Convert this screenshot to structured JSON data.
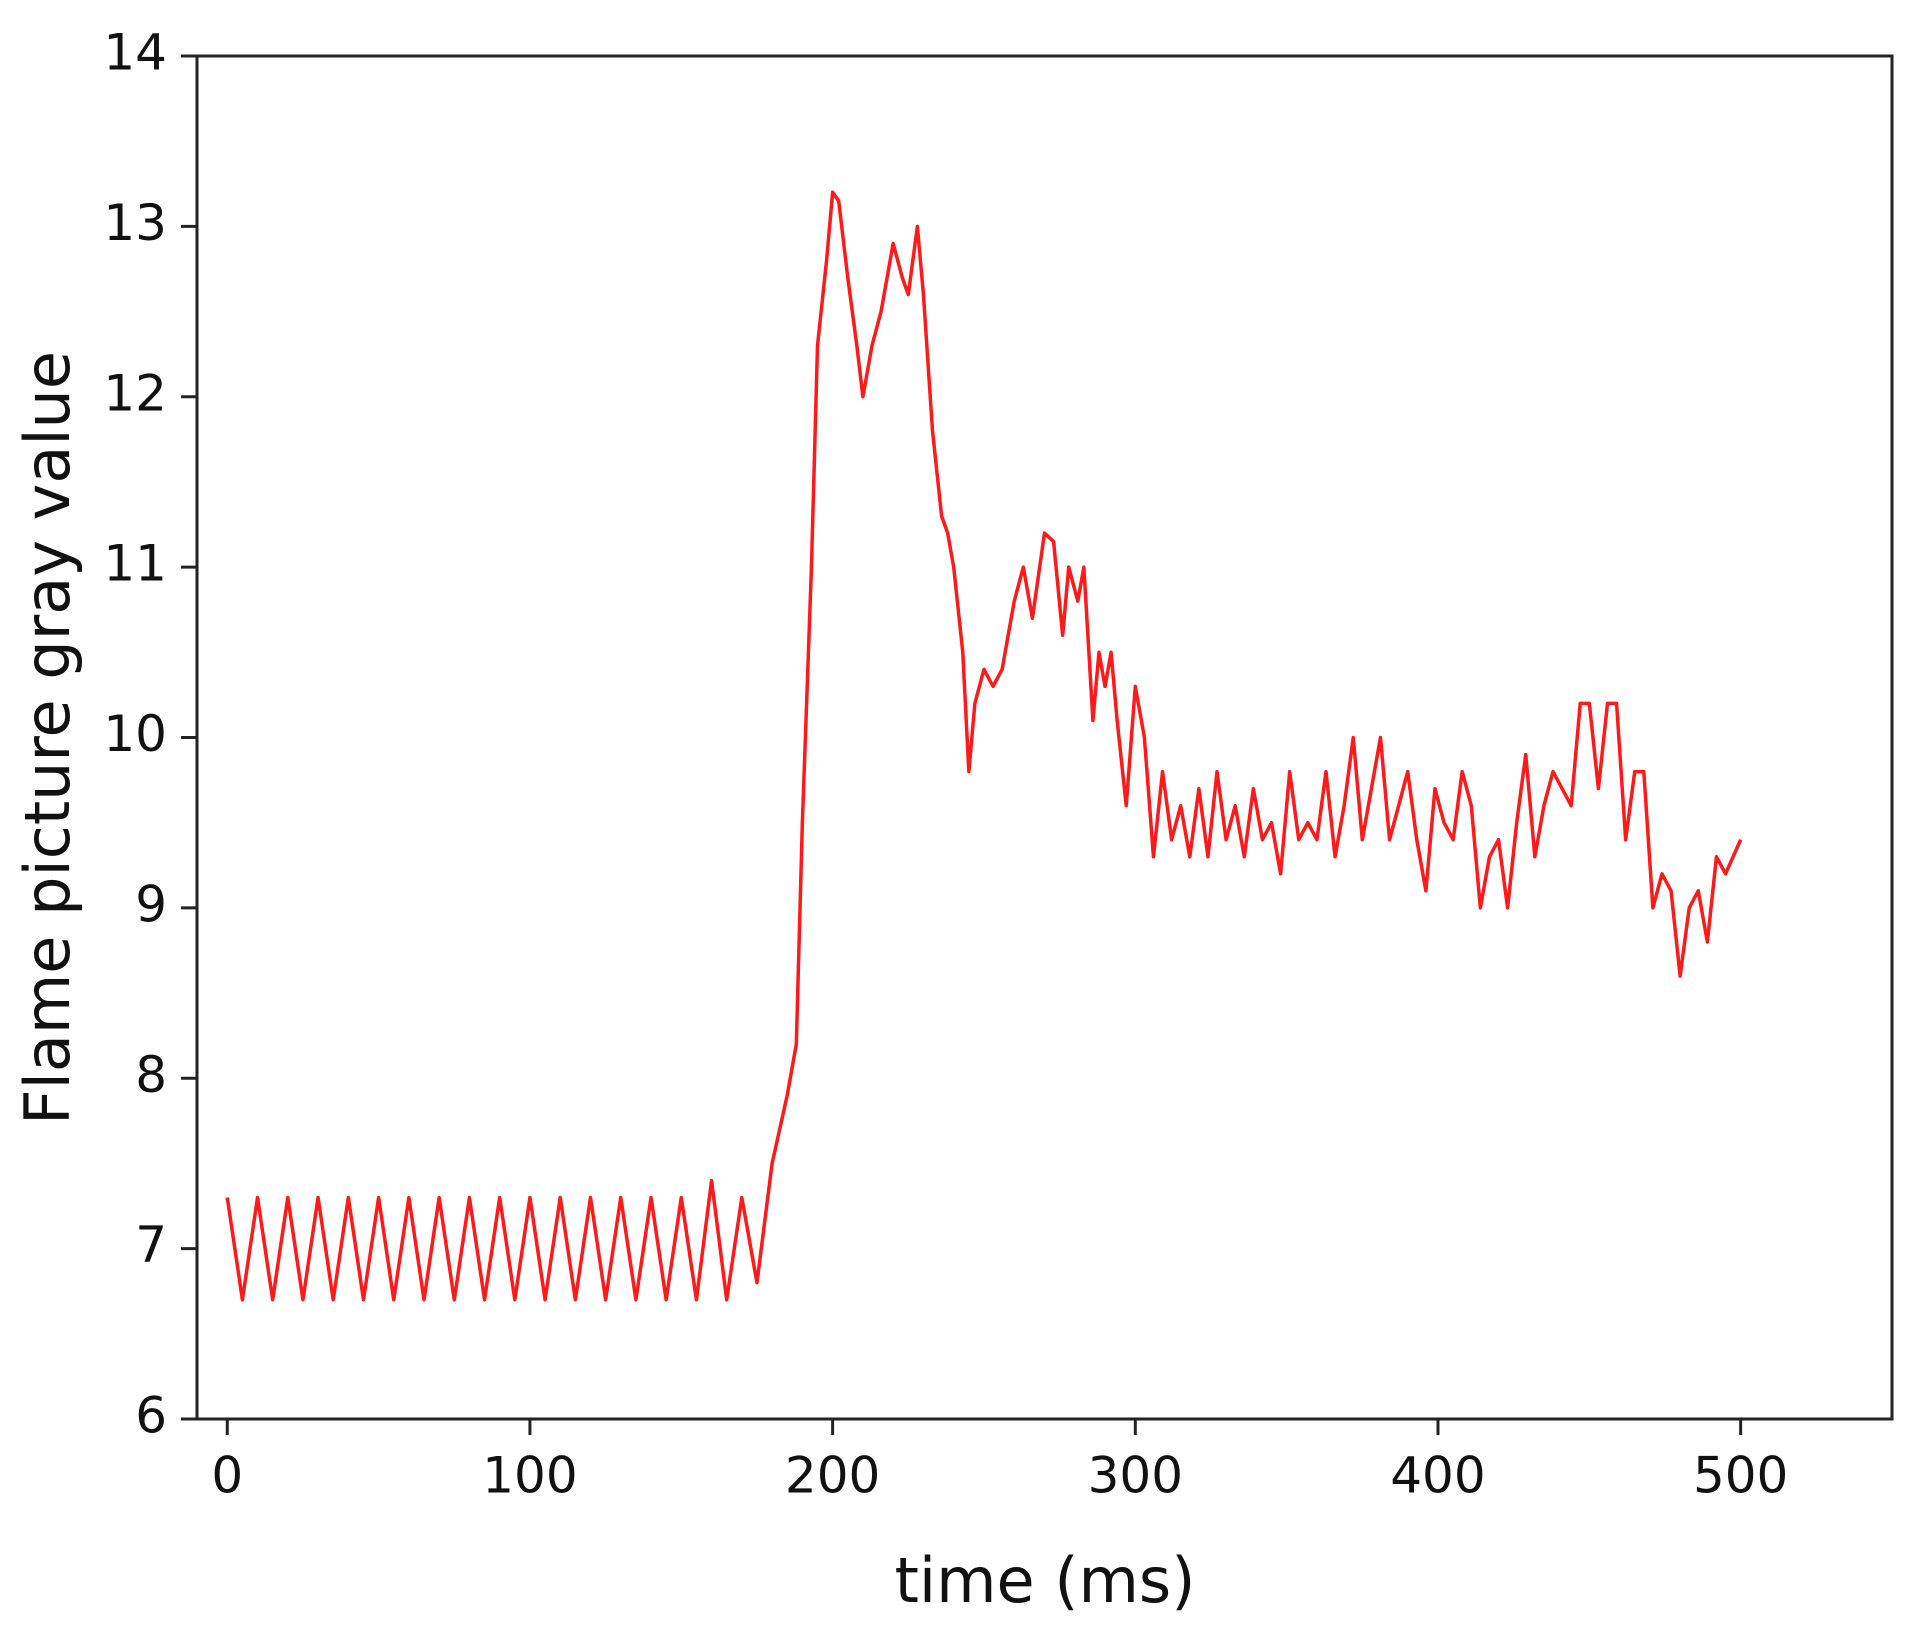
{
  "chart_data": {
    "type": "line",
    "xlabel": "time (ms)",
    "ylabel": "Flame picture gray value",
    "xlim": [
      -10,
      550
    ],
    "ylim": [
      6,
      14
    ],
    "xticks": [
      0,
      100,
      200,
      300,
      400,
      500
    ],
    "yticks": [
      6,
      7,
      8,
      9,
      10,
      11,
      12,
      13,
      14
    ],
    "grid": false,
    "series": [
      {
        "name": null,
        "color": "#ff1a1a",
        "x": [
          0,
          5,
          10,
          15,
          20,
          25,
          30,
          35,
          40,
          45,
          50,
          55,
          60,
          65,
          70,
          75,
          80,
          85,
          90,
          95,
          100,
          105,
          110,
          115,
          120,
          125,
          130,
          135,
          140,
          145,
          150,
          155,
          160,
          165,
          170,
          175,
          180,
          185,
          188,
          190,
          193,
          195,
          198,
          200,
          202,
          205,
          208,
          210,
          213,
          216,
          220,
          223,
          225,
          228,
          230,
          233,
          236,
          238,
          240,
          243,
          245,
          247,
          250,
          253,
          256,
          260,
          263,
          266,
          270,
          273,
          276,
          278,
          281,
          283,
          286,
          288,
          290,
          292,
          294,
          297,
          300,
          303,
          306,
          309,
          312,
          315,
          318,
          321,
          324,
          327,
          330,
          333,
          336,
          339,
          342,
          345,
          348,
          351,
          354,
          357,
          360,
          363,
          366,
          369,
          372,
          375,
          378,
          381,
          384,
          387,
          390,
          393,
          396,
          399,
          402,
          405,
          408,
          411,
          414,
          417,
          420,
          423,
          426,
          429,
          432,
          435,
          438,
          441,
          444,
          447,
          450,
          453,
          456,
          459,
          462,
          465,
          468,
          471,
          474,
          477,
          480,
          483,
          486,
          489,
          492,
          495,
          500
        ],
        "values": [
          7.3,
          6.7,
          7.3,
          6.7,
          7.3,
          6.7,
          7.3,
          6.7,
          7.3,
          6.7,
          7.3,
          6.7,
          7.3,
          6.7,
          7.3,
          6.7,
          7.3,
          6.7,
          7.3,
          6.7,
          7.3,
          6.7,
          7.3,
          6.7,
          7.3,
          6.7,
          7.3,
          6.7,
          7.3,
          6.7,
          7.3,
          6.7,
          7.4,
          6.7,
          7.3,
          6.8,
          7.5,
          7.9,
          8.2,
          9.5,
          11.0,
          12.3,
          12.8,
          13.2,
          13.15,
          12.7,
          12.3,
          12.0,
          12.3,
          12.5,
          12.9,
          12.7,
          12.6,
          13.0,
          12.6,
          11.8,
          11.3,
          11.2,
          11.0,
          10.5,
          9.8,
          10.2,
          10.4,
          10.3,
          10.4,
          10.8,
          11.0,
          10.7,
          11.2,
          11.15,
          10.6,
          11.0,
          10.8,
          11.0,
          10.1,
          10.5,
          10.3,
          10.5,
          10.1,
          9.6,
          10.3,
          10.0,
          9.3,
          9.8,
          9.4,
          9.6,
          9.3,
          9.7,
          9.3,
          9.8,
          9.4,
          9.6,
          9.3,
          9.7,
          9.4,
          9.5,
          9.2,
          9.8,
          9.4,
          9.5,
          9.4,
          9.8,
          9.3,
          9.6,
          10.0,
          9.4,
          9.7,
          10.0,
          9.4,
          9.6,
          9.8,
          9.4,
          9.1,
          9.7,
          9.5,
          9.4,
          9.8,
          9.6,
          9.0,
          9.3,
          9.4,
          9.0,
          9.5,
          9.9,
          9.3,
          9.6,
          9.8,
          9.7,
          9.6,
          10.2,
          10.2,
          9.7,
          10.2,
          10.2,
          9.4,
          9.8,
          9.8,
          9.0,
          9.2,
          9.1,
          8.6,
          9.0,
          9.1,
          8.8,
          9.3,
          9.2,
          9.4
        ]
      }
    ]
  }
}
